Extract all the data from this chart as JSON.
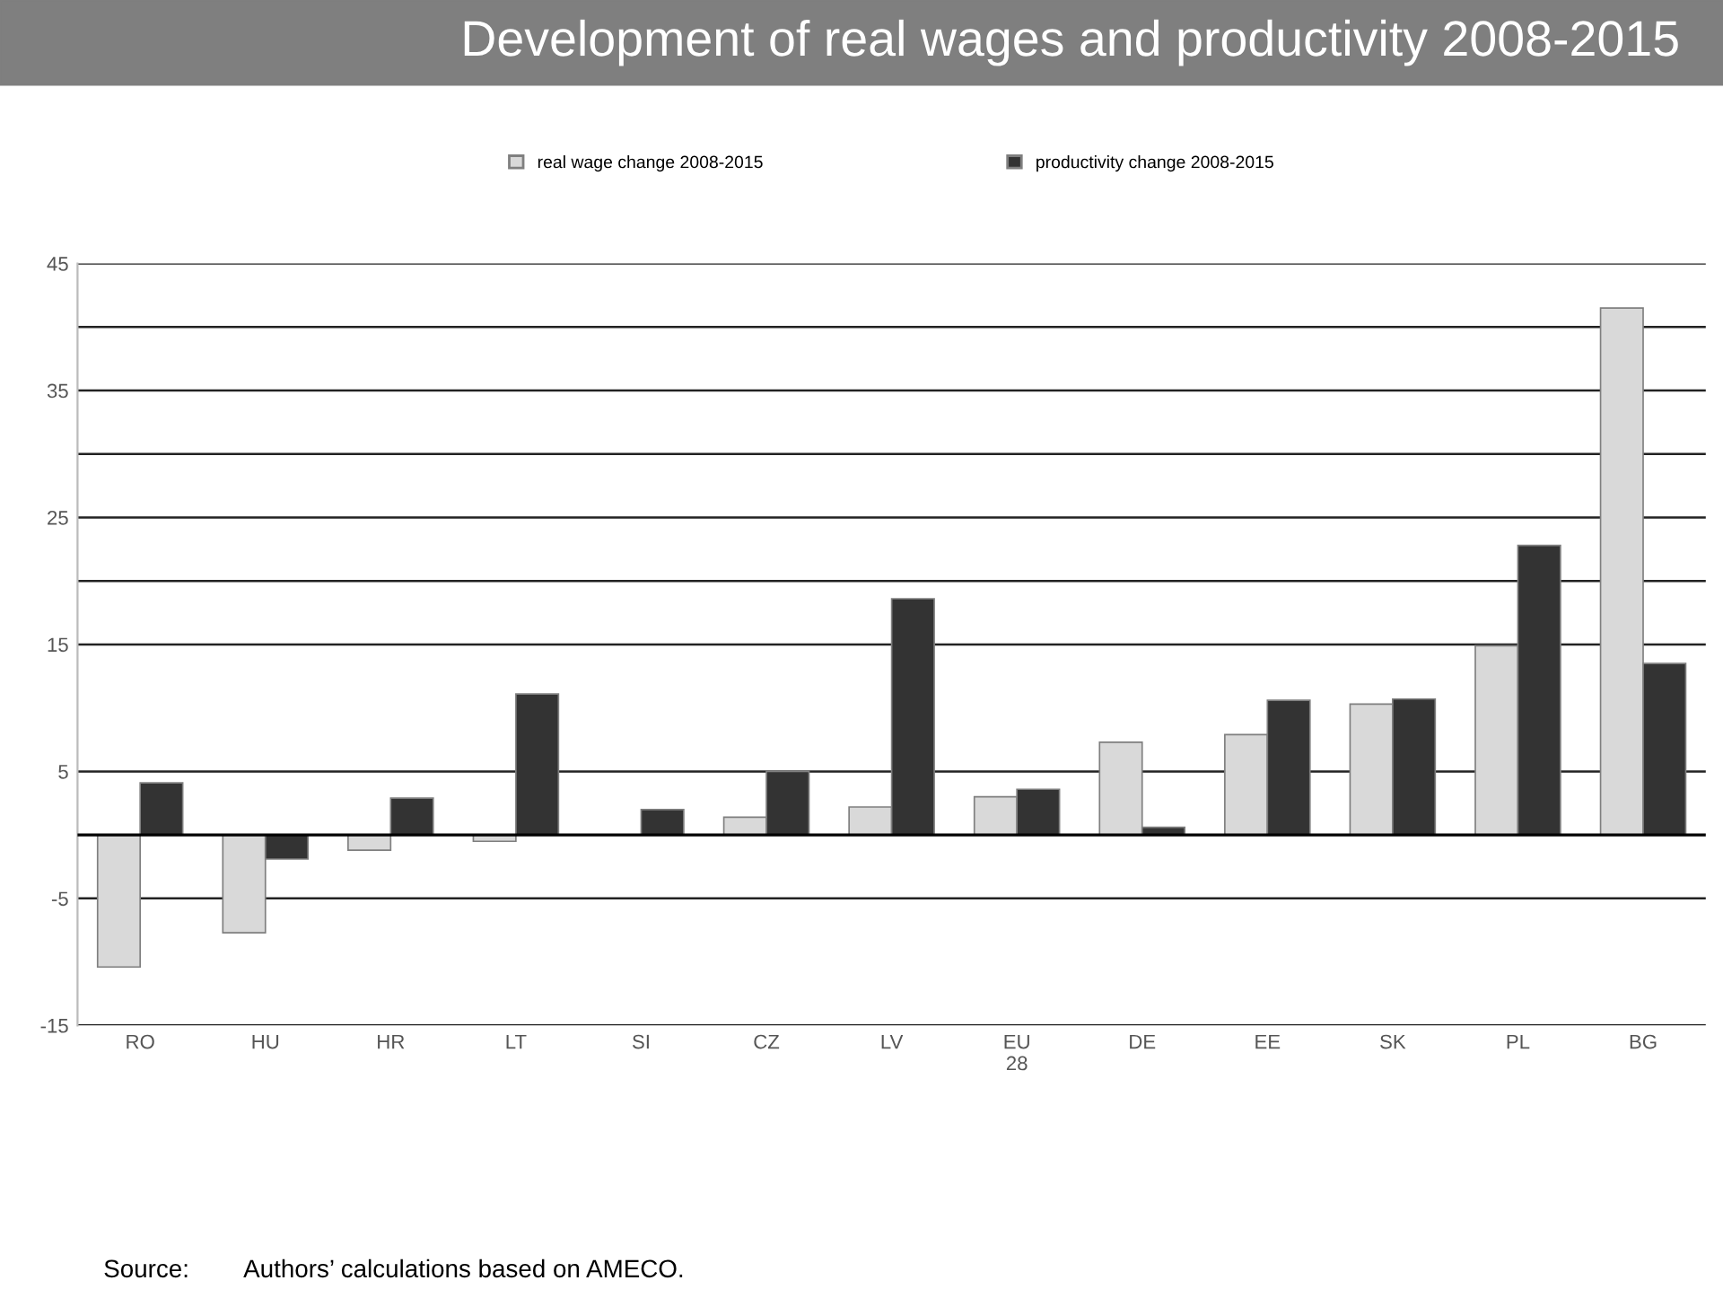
{
  "chart_data": {
    "type": "bar",
    "title": "Development of real wages and productivity 2008-2015",
    "categories": [
      "RO",
      "HU",
      "HR",
      "LT",
      "SI",
      "CZ",
      "LV",
      "EU\n28",
      "DE",
      "EE",
      "SK",
      "PL",
      "BG"
    ],
    "series": [
      {
        "name": "real wage change 2008-2015",
        "color": "#d9d9d9",
        "values": [
          -10.4,
          -7.7,
          -1.2,
          -0.5,
          0,
          1.4,
          2.2,
          3.0,
          7.3,
          7.9,
          10.3,
          14.9,
          41.5
        ]
      },
      {
        "name": "productivity change 2008-2015",
        "color": "#333333",
        "values": [
          4.1,
          -1.9,
          2.9,
          11.1,
          2.0,
          5.0,
          18.6,
          3.6,
          0.6,
          10.6,
          10.7,
          22.8,
          13.5
        ]
      }
    ],
    "ylim": [
      -15,
      45
    ],
    "yticks": [
      -15,
      -5,
      5,
      15,
      25,
      35,
      {
        "value": 40,
        "label": null
      },
      {
        "value": 30,
        "label": null
      },
      {
        "value": 20,
        "label": null
      },
      45
    ],
    "grid": "y",
    "legend": "top",
    "annotations": [
      "Source:        Authors’ calculations based on AMECO."
    ]
  }
}
